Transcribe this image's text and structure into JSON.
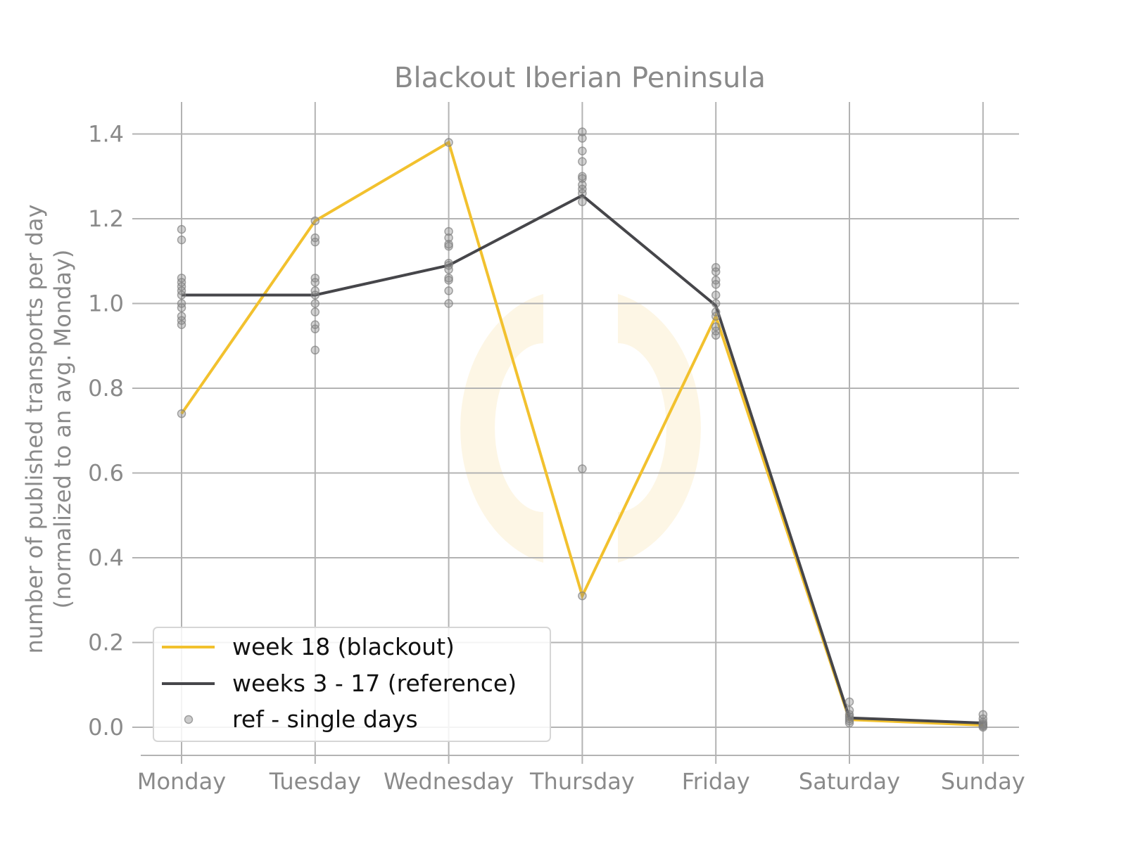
{
  "chart_data": {
    "type": "line",
    "title": "Blackout Iberian Peninsula",
    "xlabel": "",
    "ylabel": "number of published transports per day",
    "ylabel_line2": "(normalized to an avg. Monday)",
    "categories": [
      "Monday",
      "Tuesday",
      "Wednesday",
      "Thursday",
      "Friday",
      "Saturday",
      "Sunday"
    ],
    "ylim": [
      -0.07,
      1.47
    ],
    "yticks": [
      "0.0",
      "0.2",
      "0.4",
      "0.6",
      "0.8",
      "1.0",
      "1.2",
      "1.4"
    ],
    "grid": true,
    "legend_position": "bottom-left",
    "series": [
      {
        "name": "week 18 (blackout)",
        "color": "#f2c12e",
        "values": [
          0.74,
          1.195,
          1.38,
          0.31,
          0.97,
          0.018,
          0.005
        ]
      },
      {
        "name": "weeks 3 - 17 (reference)",
        "color": "#46464a",
        "values": [
          1.02,
          1.02,
          1.09,
          1.255,
          0.995,
          0.022,
          0.01
        ]
      }
    ],
    "scatter": {
      "name": "ref - single days",
      "color": "#808080",
      "points": [
        [
          0.74,
          0.95,
          0.96,
          0.97,
          0.99,
          1.0,
          1.02,
          1.03,
          1.04,
          1.05,
          1.06,
          1.15,
          1.175
        ],
        [
          0.89,
          0.94,
          0.95,
          0.98,
          1.0,
          1.02,
          1.03,
          1.05,
          1.06,
          1.145,
          1.155,
          1.195
        ],
        [
          1.0,
          1.03,
          1.055,
          1.06,
          1.08,
          1.09,
          1.095,
          1.135,
          1.14,
          1.155,
          1.17,
          1.38
        ],
        [
          0.31,
          0.61,
          1.24,
          1.26,
          1.27,
          1.28,
          1.295,
          1.3,
          1.335,
          1.36,
          1.39,
          1.405
        ],
        [
          0.925,
          0.935,
          0.945,
          0.97,
          0.98,
          1.0,
          1.02,
          1.045,
          1.055,
          1.075,
          1.085
        ],
        [
          0.01,
          0.015,
          0.02,
          0.025,
          0.03,
          0.04,
          0.06
        ],
        [
          0.0,
          0.003,
          0.005,
          0.008,
          0.012,
          0.02,
          0.03
        ]
      ]
    }
  }
}
